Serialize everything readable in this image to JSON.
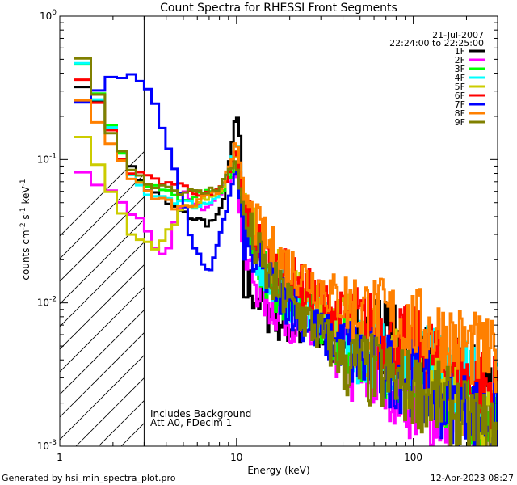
{
  "footer": {
    "generated_by": "Generated by hsi_min_spectra_plot.pro",
    "date": "12-Apr-2023 08:27"
  },
  "chart_data": {
    "type": "line",
    "title": "Count Spectra for RHESSI Front Segments",
    "xlabel": "Energy (keV)",
    "ylabel_parts": [
      "counts cm",
      "-2",
      " s",
      "-1",
      " keV",
      "-1"
    ],
    "xscale": "log",
    "yscale": "log",
    "xlim": [
      1,
      300
    ],
    "ylim": [
      0.001,
      1
    ],
    "x_tick_labels": [
      {
        "value": 1,
        "label": "1"
      },
      {
        "value": 10,
        "label": "10"
      },
      {
        "value": 100,
        "label": "100"
      }
    ],
    "y_tick_labels": [
      {
        "value": 1,
        "label": "10",
        "exp": "0"
      },
      {
        "value": 0.1,
        "label": "10",
        "exp": "-1"
      },
      {
        "value": 0.01,
        "label": "10",
        "exp": "-2"
      },
      {
        "value": 0.001,
        "label": "10",
        "exp": "-3"
      }
    ],
    "hatched_region_kev": [
      1,
      3
    ],
    "date": "21-Jul-2007",
    "time_range": "22:24:00 to 22:25:00",
    "annotations": [
      "Includes Background",
      "Att A0, FDecim 1"
    ],
    "legend_position": "top-right",
    "series": [
      {
        "name": "1F",
        "color": "#000000",
        "points": [
          [
            1.2,
            0.4
          ],
          [
            1.5,
            0.3
          ],
          [
            2,
            0.16
          ],
          [
            2.5,
            0.09
          ],
          [
            3,
            0.065
          ],
          [
            4,
            0.05
          ],
          [
            5,
            0.042
          ],
          [
            6,
            0.038
          ],
          [
            7,
            0.036
          ],
          [
            8,
            0.04
          ],
          [
            9,
            0.08
          ],
          [
            10,
            0.22
          ],
          [
            10.6,
            0.12
          ],
          [
            11,
            0.012
          ],
          [
            12,
            0.013
          ],
          [
            15,
            0.009
          ],
          [
            20,
            0.007
          ],
          [
            30,
            0.006
          ],
          [
            40,
            0.005
          ],
          [
            50,
            0.007
          ],
          [
            70,
            0.006
          ],
          [
            100,
            0.004
          ],
          [
            150,
            0.003
          ],
          [
            200,
            0.003
          ],
          [
            280,
            0.0025
          ]
        ]
      },
      {
        "name": "2F",
        "color": "#ff00ff",
        "points": [
          [
            1.2,
            0.095
          ],
          [
            1.5,
            0.075
          ],
          [
            2,
            0.058
          ],
          [
            2.5,
            0.045
          ],
          [
            3,
            0.035
          ],
          [
            3.5,
            0.022
          ],
          [
            4,
            0.02
          ],
          [
            5,
            0.06
          ],
          [
            6,
            0.045
          ],
          [
            7,
            0.05
          ],
          [
            8,
            0.06
          ],
          [
            9,
            0.07
          ],
          [
            10,
            0.09
          ],
          [
            11,
            0.02
          ],
          [
            15,
            0.01
          ],
          [
            20,
            0.008
          ],
          [
            30,
            0.005
          ],
          [
            40,
            0.004
          ],
          [
            50,
            0.003
          ],
          [
            70,
            0.003
          ],
          [
            100,
            0.002
          ],
          [
            150,
            0.0015
          ],
          [
            200,
            0.0013
          ],
          [
            280,
            0.0012
          ]
        ]
      },
      {
        "name": "3F",
        "color": "#00ff00",
        "points": [
          [
            1.2,
            0.6
          ],
          [
            1.5,
            0.4
          ],
          [
            2,
            0.16
          ],
          [
            2.5,
            0.085
          ],
          [
            3,
            0.07
          ],
          [
            4,
            0.06
          ],
          [
            5,
            0.05
          ],
          [
            6,
            0.055
          ],
          [
            7,
            0.058
          ],
          [
            8,
            0.06
          ],
          [
            9,
            0.07
          ],
          [
            10,
            0.1
          ],
          [
            11,
            0.04
          ],
          [
            12,
            0.03
          ],
          [
            15,
            0.015
          ],
          [
            20,
            0.01
          ],
          [
            30,
            0.007
          ],
          [
            40,
            0.005
          ],
          [
            50,
            0.004
          ],
          [
            70,
            0.0035
          ],
          [
            100,
            0.003
          ],
          [
            150,
            0.0025
          ],
          [
            200,
            0.002
          ],
          [
            280,
            0.0015
          ]
        ]
      },
      {
        "name": "4F",
        "color": "#00ffff",
        "points": [
          [
            1.2,
            0.55
          ],
          [
            1.5,
            0.36
          ],
          [
            2,
            0.15
          ],
          [
            2.5,
            0.08
          ],
          [
            3,
            0.06
          ],
          [
            4,
            0.055
          ],
          [
            5,
            0.05
          ],
          [
            6,
            0.048
          ],
          [
            7,
            0.05
          ],
          [
            8,
            0.06
          ],
          [
            9,
            0.08
          ],
          [
            10,
            0.14
          ],
          [
            11,
            0.05
          ],
          [
            12,
            0.03
          ],
          [
            15,
            0.015
          ],
          [
            20,
            0.011
          ],
          [
            30,
            0.008
          ],
          [
            40,
            0.006
          ],
          [
            50,
            0.005
          ],
          [
            70,
            0.0045
          ],
          [
            100,
            0.004
          ],
          [
            150,
            0.0035
          ],
          [
            200,
            0.003
          ],
          [
            280,
            0.0025
          ]
        ]
      },
      {
        "name": "5F",
        "color": "#cccc00",
        "points": [
          [
            1.2,
            0.2
          ],
          [
            1.5,
            0.12
          ],
          [
            2,
            0.055
          ],
          [
            2.5,
            0.032
          ],
          [
            3,
            0.028
          ],
          [
            3.5,
            0.025
          ],
          [
            4,
            0.03
          ],
          [
            5,
            0.045
          ],
          [
            6,
            0.05
          ],
          [
            7,
            0.055
          ],
          [
            8,
            0.06
          ],
          [
            9,
            0.08
          ],
          [
            10,
            0.12
          ],
          [
            11,
            0.05
          ],
          [
            12,
            0.035
          ],
          [
            15,
            0.02
          ],
          [
            20,
            0.014
          ],
          [
            30,
            0.01
          ],
          [
            40,
            0.008
          ],
          [
            50,
            0.006
          ],
          [
            70,
            0.005
          ],
          [
            100,
            0.003
          ],
          [
            150,
            0.0025
          ],
          [
            200,
            0.002
          ],
          [
            280,
            0.0015
          ]
        ]
      },
      {
        "name": "6F",
        "color": "#ff0000",
        "points": [
          [
            1.2,
            0.38
          ],
          [
            1.5,
            0.32
          ],
          [
            2,
            0.14
          ],
          [
            2.5,
            0.085
          ],
          [
            3,
            0.075
          ],
          [
            4,
            0.07
          ],
          [
            5,
            0.065
          ],
          [
            6,
            0.06
          ],
          [
            7,
            0.055
          ],
          [
            8,
            0.06
          ],
          [
            9,
            0.075
          ],
          [
            10,
            0.12
          ],
          [
            11,
            0.05
          ],
          [
            12,
            0.035
          ],
          [
            15,
            0.02
          ],
          [
            20,
            0.015
          ],
          [
            30,
            0.01
          ],
          [
            40,
            0.008
          ],
          [
            50,
            0.007
          ],
          [
            70,
            0.006
          ],
          [
            100,
            0.005
          ],
          [
            150,
            0.004
          ],
          [
            200,
            0.003
          ],
          [
            280,
            0.0025
          ]
        ]
      },
      {
        "name": "7F",
        "color": "#0000ff",
        "points": [
          [
            1.2,
            0.23
          ],
          [
            1.5,
            0.27
          ],
          [
            1.8,
            0.38
          ],
          [
            2.5,
            0.37
          ],
          [
            3,
            0.35
          ],
          [
            3.5,
            0.25
          ],
          [
            4,
            0.14
          ],
          [
            4.5,
            0.08
          ],
          [
            5,
            0.05
          ],
          [
            5.5,
            0.03
          ],
          [
            6,
            0.022
          ],
          [
            6.5,
            0.018
          ],
          [
            7,
            0.015
          ],
          [
            7.5,
            0.02
          ],
          [
            8,
            0.03
          ],
          [
            9,
            0.05
          ],
          [
            10,
            0.09
          ],
          [
            11,
            0.03
          ],
          [
            12,
            0.02
          ],
          [
            15,
            0.015
          ],
          [
            20,
            0.01
          ],
          [
            30,
            0.006
          ],
          [
            40,
            0.005
          ],
          [
            50,
            0.004
          ],
          [
            70,
            0.0035
          ],
          [
            100,
            0.003
          ],
          [
            150,
            0.002
          ],
          [
            200,
            0.0018
          ],
          [
            280,
            0.0015
          ]
        ]
      },
      {
        "name": "8F",
        "color": "#ff8000",
        "points": [
          [
            1.2,
            0.3
          ],
          [
            1.5,
            0.22
          ],
          [
            2,
            0.12
          ],
          [
            2.5,
            0.08
          ],
          [
            3,
            0.06
          ],
          [
            4,
            0.05
          ],
          [
            5,
            0.045
          ],
          [
            6,
            0.05
          ],
          [
            7,
            0.055
          ],
          [
            8,
            0.06
          ],
          [
            9,
            0.09
          ],
          [
            10,
            0.13
          ],
          [
            11,
            0.06
          ],
          [
            12,
            0.04
          ],
          [
            15,
            0.025
          ],
          [
            20,
            0.018
          ],
          [
            30,
            0.013
          ],
          [
            40,
            0.01
          ],
          [
            50,
            0.009
          ],
          [
            70,
            0.008
          ],
          [
            100,
            0.007
          ],
          [
            150,
            0.006
          ],
          [
            200,
            0.005
          ],
          [
            280,
            0.004
          ]
        ]
      },
      {
        "name": "9F",
        "color": "#808000",
        "points": [
          [
            1.2,
            0.58
          ],
          [
            1.5,
            0.4
          ],
          [
            2,
            0.15
          ],
          [
            2.5,
            0.09
          ],
          [
            3,
            0.07
          ],
          [
            4,
            0.065
          ],
          [
            5,
            0.06
          ],
          [
            6,
            0.058
          ],
          [
            7,
            0.06
          ],
          [
            8,
            0.065
          ],
          [
            9,
            0.08
          ],
          [
            10,
            0.1
          ],
          [
            11,
            0.04
          ],
          [
            12,
            0.03
          ],
          [
            15,
            0.015
          ],
          [
            20,
            0.01
          ],
          [
            30,
            0.006
          ],
          [
            40,
            0.004
          ],
          [
            50,
            0.0035
          ],
          [
            70,
            0.003
          ],
          [
            100,
            0.0025
          ],
          [
            150,
            0.002
          ],
          [
            200,
            0.0015
          ],
          [
            280,
            0.0012
          ]
        ]
      }
    ]
  }
}
